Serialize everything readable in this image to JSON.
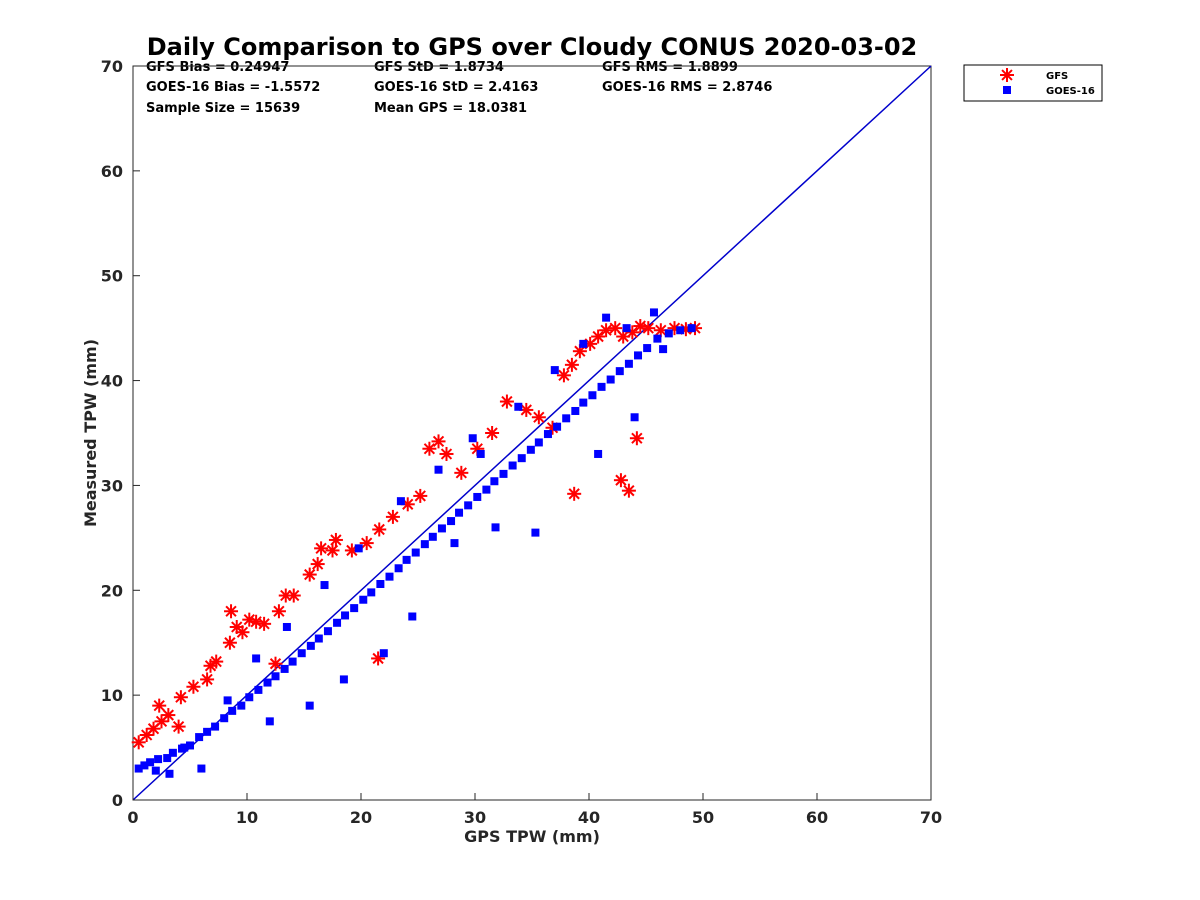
{
  "chart_data": {
    "type": "scatter",
    "title": "Daily Comparison to GPS over Cloudy CONUS 2020-03-02",
    "xlabel": "GPS TPW (mm)",
    "ylabel": "Measured TPW (mm)",
    "xlim": [
      0,
      70
    ],
    "ylim": [
      0,
      70
    ],
    "xticks": [
      "0",
      "10",
      "20",
      "30",
      "40",
      "50",
      "60",
      "70"
    ],
    "yticks": [
      "0",
      "10",
      "20",
      "30",
      "40",
      "50",
      "60",
      "70"
    ],
    "reference_line": {
      "name": "1:1 line",
      "x": [
        0,
        70
      ],
      "y": [
        0,
        70
      ],
      "color": "#0000cc"
    },
    "stats": [
      [
        "GFS Bias = 0.24947",
        "GFS StD = 1.8734",
        "GFS RMS = 1.8899"
      ],
      [
        "GOES-16 Bias = -1.5572",
        "GOES-16 StD = 2.4163",
        "GOES-16 RMS = 2.8746"
      ],
      [
        "Sample Size = 15639",
        "Mean GPS = 18.0381"
      ]
    ],
    "legend": {
      "placement": "outside-top-right",
      "entries": [
        "GFS",
        "GOES-16"
      ]
    },
    "series": [
      {
        "name": "GFS",
        "marker": "asterisk",
        "color": "#ff0000",
        "x": [
          0.5,
          1.2,
          1.8,
          2.5,
          3.1,
          4.2,
          5.3,
          6.5,
          7.3,
          8.5,
          9.1,
          10.2,
          11.5,
          12.8,
          14.1,
          15.5,
          16.5,
          17.8,
          19.2,
          20.5,
          21.6,
          22.8,
          24.1,
          25.2,
          26.0,
          26.8,
          27.5,
          28.8,
          30.2,
          31.5,
          32.8,
          34.5,
          35.6,
          36.8,
          37.8,
          38.5,
          39.2,
          40.1,
          40.8,
          41.5,
          42.3,
          43.0,
          43.8,
          44.5,
          45.2,
          46.3,
          47.5,
          48.5,
          49.3,
          8.6,
          10.8,
          12.5,
          21.5,
          38.7,
          42.8,
          43.5,
          44.2,
          2.3,
          4.0,
          6.8,
          9.6,
          13.4,
          16.2,
          17.5
        ],
        "y": [
          5.5,
          6.2,
          6.8,
          7.5,
          8.1,
          9.8,
          10.8,
          11.5,
          13.2,
          15.0,
          16.5,
          17.2,
          16.8,
          18.0,
          19.5,
          21.5,
          24.0,
          24.8,
          23.8,
          24.5,
          25.8,
          27.0,
          28.2,
          29.0,
          33.5,
          34.2,
          33.0,
          31.2,
          33.5,
          35.0,
          38.0,
          37.2,
          36.5,
          35.5,
          40.5,
          41.5,
          42.8,
          43.5,
          44.2,
          44.8,
          45.0,
          44.2,
          44.6,
          45.2,
          45.0,
          44.8,
          45.0,
          44.9,
          45.0,
          18.0,
          17.0,
          13.0,
          13.5,
          29.2,
          30.5,
          29.5,
          34.5,
          9.0,
          7.0,
          12.8,
          16.0,
          19.5,
          22.5,
          23.8
        ]
      },
      {
        "name": "GOES-16",
        "marker": "square",
        "color": "#0000ff",
        "x": [
          0.5,
          1.0,
          1.5,
          2.2,
          3.0,
          3.5,
          4.3,
          5.0,
          5.8,
          6.5,
          7.2,
          8.0,
          8.7,
          9.5,
          10.2,
          11.0,
          11.8,
          12.5,
          13.3,
          14.0,
          14.8,
          15.6,
          16.3,
          17.1,
          17.9,
          18.6,
          19.4,
          20.2,
          20.9,
          21.7,
          22.5,
          23.3,
          24.0,
          24.8,
          25.6,
          26.3,
          27.1,
          27.9,
          28.6,
          29.4,
          30.2,
          31.0,
          31.7,
          32.5,
          33.3,
          34.1,
          34.9,
          35.6,
          36.4,
          37.2,
          38.0,
          38.8,
          39.5,
          40.3,
          41.1,
          41.9,
          42.7,
          43.5,
          44.3,
          45.1,
          46.0,
          47.0,
          48.0,
          49.0,
          30.5,
          33.8,
          37.0,
          39.5,
          41.5,
          43.3,
          45.7,
          28.2,
          31.8,
          35.3,
          40.8,
          44.0,
          46.5,
          24.5,
          22.0,
          18.5,
          15.5,
          12.0,
          6.0,
          3.2,
          2.0,
          4.5,
          8.3,
          10.8,
          13.5,
          16.8,
          19.8,
          23.5,
          26.8,
          29.8
        ],
        "y": [
          3.0,
          3.3,
          3.6,
          3.9,
          4.0,
          4.5,
          4.9,
          5.2,
          6.0,
          6.5,
          7.0,
          7.8,
          8.5,
          9.0,
          9.8,
          10.5,
          11.2,
          11.8,
          12.5,
          13.2,
          14.0,
          14.7,
          15.4,
          16.1,
          16.9,
          17.6,
          18.3,
          19.1,
          19.8,
          20.6,
          21.3,
          22.1,
          22.9,
          23.6,
          24.4,
          25.1,
          25.9,
          26.6,
          27.4,
          28.1,
          28.9,
          29.6,
          30.4,
          31.1,
          31.9,
          32.6,
          33.4,
          34.1,
          34.9,
          35.6,
          36.4,
          37.1,
          37.9,
          38.6,
          39.4,
          40.1,
          40.9,
          41.6,
          42.4,
          43.1,
          44.0,
          44.5,
          44.8,
          45.0,
          33.0,
          37.5,
          41.0,
          43.5,
          46.0,
          45.0,
          46.5,
          24.5,
          26.0,
          25.5,
          33.0,
          36.5,
          43.0,
          17.5,
          14.0,
          11.5,
          9.0,
          7.5,
          3.0,
          2.5,
          2.8,
          5.0,
          9.5,
          13.5,
          16.5,
          20.5,
          24.0,
          28.5,
          31.5,
          34.5
        ]
      }
    ]
  }
}
